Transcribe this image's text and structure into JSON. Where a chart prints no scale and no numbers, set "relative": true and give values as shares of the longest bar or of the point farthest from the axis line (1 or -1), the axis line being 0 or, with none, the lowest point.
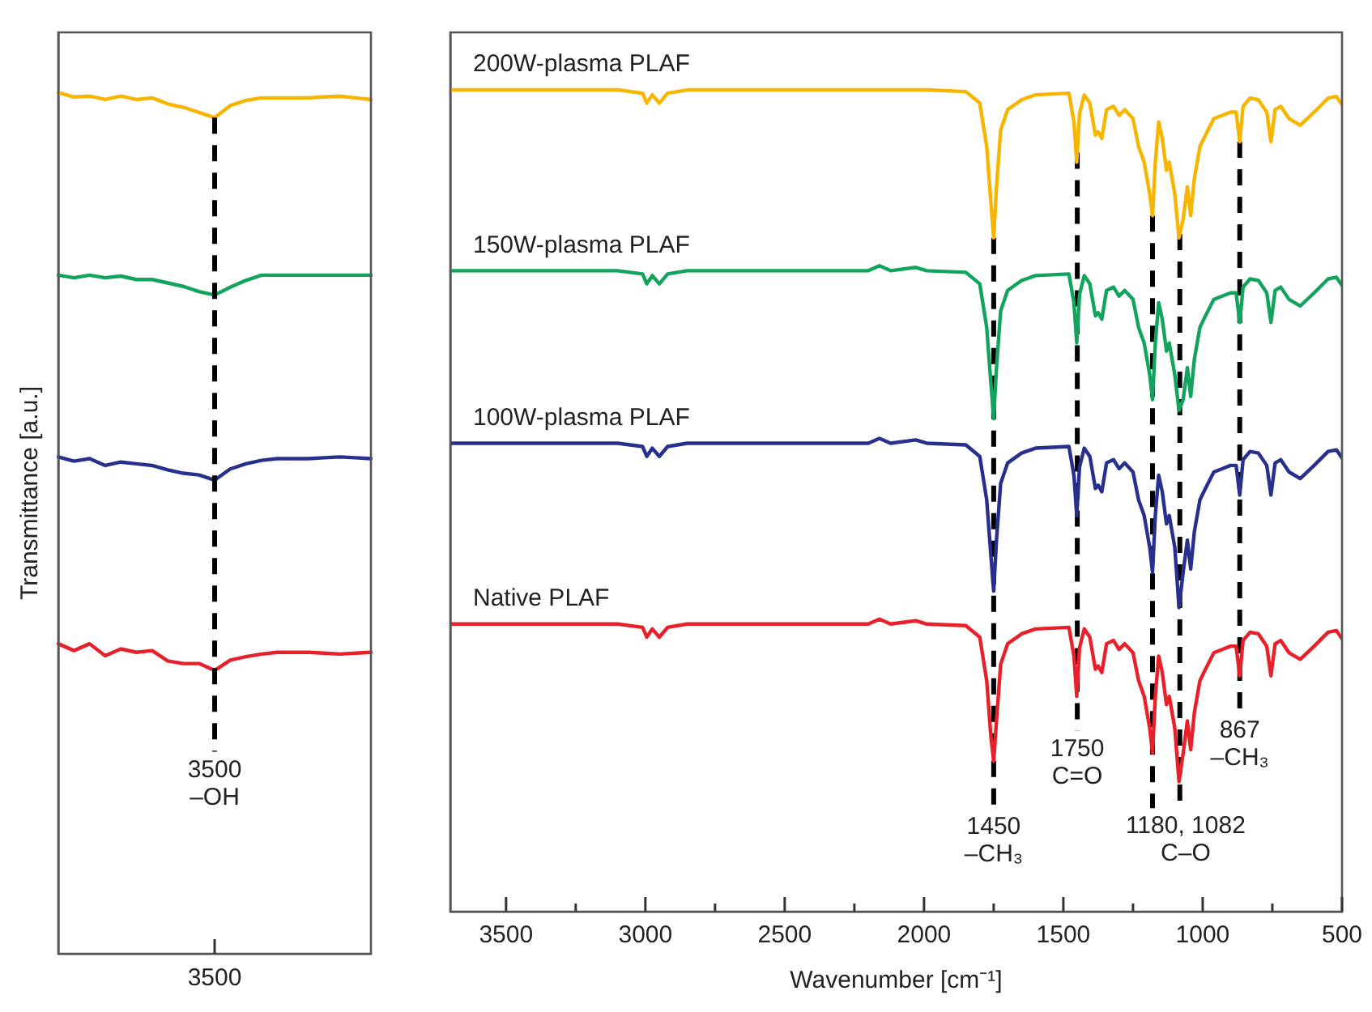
{
  "chart_data": [
    {
      "type": "line",
      "relative": true,
      "ylabel": "Transmittance [a.u.]",
      "categories": [
        null,
        null,
        null,
        null,
        null,
        null,
        null,
        null,
        null,
        null,
        null,
        null,
        null,
        null,
        null,
        null,
        null,
        null,
        null,
        null,
        null
      ],
      "series": [
        {
          "color": "#f7b500",
          "values": [
            1.0,
            0.995,
            0.996,
            0.992,
            0.996,
            0.992,
            0.994,
            0.987,
            0.983,
            0.977,
            0.971,
            0.985,
            0.991,
            0.994,
            0.994,
            0.994,
            0.994,
            0.995,
            0.996,
            0.994,
            0.992
          ]
        },
        {
          "color": "#12a35c",
          "values": [
            0.788,
            0.785,
            0.788,
            0.785,
            0.787,
            0.783,
            0.783,
            0.779,
            0.775,
            0.769,
            0.765,
            0.774,
            0.782,
            0.788,
            0.788,
            0.788,
            0.788,
            0.788,
            0.788,
            0.788,
            0.788
          ]
        },
        {
          "color": "#27308c",
          "values": [
            0.577,
            0.572,
            0.575,
            0.567,
            0.571,
            0.569,
            0.567,
            0.562,
            0.558,
            0.556,
            0.55,
            0.563,
            0.569,
            0.573,
            0.575,
            0.575,
            0.575,
            0.576,
            0.577,
            0.576,
            0.575
          ]
        },
        {
          "color": "#e8202a",
          "values": [
            0.36,
            0.352,
            0.36,
            0.346,
            0.354,
            0.35,
            0.352,
            0.34,
            0.337,
            0.337,
            0.329,
            0.341,
            0.345,
            0.348,
            0.35,
            0.35,
            0.35,
            0.349,
            0.348,
            0.349,
            0.35
          ]
        }
      ],
      "annotations": [
        "3500\n–OH",
        "3500"
      ]
    },
    {
      "type": "line",
      "relative": true,
      "xlabel": "Wavenumber [cm⁻¹]",
      "x": [
        3700,
        3100,
        3010,
        2995,
        2975,
        2950,
        2920,
        2850,
        2200,
        2160,
        2120,
        2030,
        1990,
        1850,
        1800,
        1775,
        1760,
        1750,
        1740,
        1725,
        1700,
        1650,
        1600,
        1480,
        1462,
        1452,
        1442,
        1425,
        1405,
        1385,
        1375,
        1362,
        1345,
        1320,
        1300,
        1280,
        1250,
        1230,
        1210,
        1190,
        1180,
        1170,
        1158,
        1145,
        1130,
        1120,
        1100,
        1085,
        1070,
        1055,
        1043,
        1030,
        1010,
        990,
        960,
        930,
        900,
        880,
        867,
        855,
        830,
        800,
        770,
        755,
        740,
        720,
        690,
        650,
        600,
        550,
        520,
        500
      ],
      "xlim": [
        3700,
        500
      ],
      "xticks": [
        3500,
        {
          "value": 3250,
          "label": null
        },
        3000,
        {
          "value": 2750,
          "label": null
        },
        2500,
        {
          "value": 2250,
          "label": null
        },
        2000,
        {
          "value": 1750,
          "label": null
        },
        1500,
        {
          "value": 1250,
          "label": null
        },
        1000,
        {
          "value": 750,
          "label": null
        },
        500
      ],
      "series": [
        {
          "name": "200W-plasma PLAF",
          "color": "#f7b500",
          "values": [
            1.0,
            1.0,
            0.996,
            0.984,
            0.994,
            0.984,
            0.996,
            1.0,
            1.0,
            1.0,
            1.0,
            1.0,
            1.0,
            0.998,
            0.984,
            0.931,
            0.863,
            0.82,
            0.882,
            0.951,
            0.976,
            0.988,
            0.994,
            0.996,
            0.961,
            0.912,
            0.971,
            0.994,
            0.984,
            0.945,
            0.949,
            0.941,
            0.976,
            0.98,
            0.969,
            0.976,
            0.965,
            0.931,
            0.912,
            0.873,
            0.847,
            0.912,
            0.961,
            0.941,
            0.902,
            0.912,
            0.873,
            0.82,
            0.843,
            0.882,
            0.847,
            0.892,
            0.931,
            0.945,
            0.965,
            0.969,
            0.973,
            0.973,
            0.937,
            0.98,
            0.99,
            0.988,
            0.973,
            0.937,
            0.976,
            0.98,
            0.965,
            0.957,
            0.973,
            0.99,
            0.992,
            0.982
          ]
        },
        {
          "name": "150W-plasma PLAF",
          "color": "#12a35c",
          "values": [
            0.78,
            0.78,
            0.776,
            0.764,
            0.774,
            0.764,
            0.776,
            0.78,
            0.78,
            0.786,
            0.78,
            0.784,
            0.78,
            0.778,
            0.764,
            0.711,
            0.643,
            0.6,
            0.662,
            0.731,
            0.756,
            0.768,
            0.774,
            0.776,
            0.741,
            0.692,
            0.751,
            0.774,
            0.764,
            0.725,
            0.729,
            0.721,
            0.756,
            0.76,
            0.749,
            0.756,
            0.745,
            0.711,
            0.692,
            0.653,
            0.623,
            0.692,
            0.741,
            0.721,
            0.682,
            0.692,
            0.653,
            0.61,
            0.623,
            0.662,
            0.627,
            0.672,
            0.711,
            0.725,
            0.745,
            0.749,
            0.753,
            0.753,
            0.717,
            0.76,
            0.77,
            0.768,
            0.753,
            0.717,
            0.756,
            0.76,
            0.745,
            0.737,
            0.753,
            0.77,
            0.772,
            0.762
          ]
        },
        {
          "name": "100W-plasma PLAF",
          "color": "#27308c",
          "values": [
            0.57,
            0.57,
            0.566,
            0.554,
            0.564,
            0.554,
            0.566,
            0.57,
            0.57,
            0.576,
            0.57,
            0.574,
            0.57,
            0.568,
            0.554,
            0.501,
            0.433,
            0.39,
            0.452,
            0.521,
            0.546,
            0.558,
            0.564,
            0.566,
            0.531,
            0.482,
            0.541,
            0.564,
            0.554,
            0.515,
            0.519,
            0.511,
            0.546,
            0.55,
            0.539,
            0.546,
            0.535,
            0.501,
            0.482,
            0.443,
            0.413,
            0.482,
            0.531,
            0.511,
            0.472,
            0.482,
            0.443,
            0.37,
            0.413,
            0.452,
            0.417,
            0.462,
            0.501,
            0.515,
            0.535,
            0.539,
            0.543,
            0.543,
            0.507,
            0.55,
            0.56,
            0.558,
            0.543,
            0.507,
            0.546,
            0.55,
            0.535,
            0.527,
            0.543,
            0.56,
            0.562,
            0.552
          ]
        },
        {
          "name": "Native PLAF",
          "color": "#e8202a",
          "values": [
            0.35,
            0.35,
            0.346,
            0.334,
            0.344,
            0.334,
            0.346,
            0.35,
            0.35,
            0.356,
            0.35,
            0.354,
            0.35,
            0.348,
            0.334,
            0.281,
            0.213,
            0.183,
            0.232,
            0.301,
            0.326,
            0.338,
            0.344,
            0.346,
            0.311,
            0.262,
            0.321,
            0.344,
            0.334,
            0.295,
            0.299,
            0.291,
            0.326,
            0.33,
            0.319,
            0.326,
            0.315,
            0.281,
            0.262,
            0.223,
            0.193,
            0.262,
            0.311,
            0.291,
            0.252,
            0.262,
            0.223,
            0.158,
            0.193,
            0.232,
            0.197,
            0.242,
            0.281,
            0.295,
            0.315,
            0.319,
            0.323,
            0.323,
            0.287,
            0.33,
            0.34,
            0.338,
            0.323,
            0.287,
            0.326,
            0.33,
            0.315,
            0.307,
            0.323,
            0.34,
            0.342,
            0.332
          ]
        }
      ],
      "ref_lines": [
        {
          "axis": "x",
          "value": 1750,
          "color": "#000000",
          "line_style": "dashed"
        },
        {
          "axis": "x",
          "value": 1450,
          "color": "#000000",
          "line_style": "dashed"
        },
        {
          "axis": "x",
          "value": 1180,
          "color": "#000000",
          "line_style": "dashed"
        },
        {
          "axis": "x",
          "value": 1082,
          "color": "#000000",
          "line_style": "dashed"
        },
        {
          "axis": "x",
          "value": 867,
          "color": "#000000",
          "line_style": "dashed"
        }
      ],
      "annotations": [
        {
          "text": "1450\n–CH₃",
          "x": 1750,
          "y": 0.118
        },
        {
          "text": "1750\nC=O",
          "x": 1450,
          "y": 0.212
        },
        "1180, 1082\nC–O",
        {
          "text": "867\n–CH₃",
          "x": 867,
          "y": 0.235
        }
      ]
    }
  ]
}
